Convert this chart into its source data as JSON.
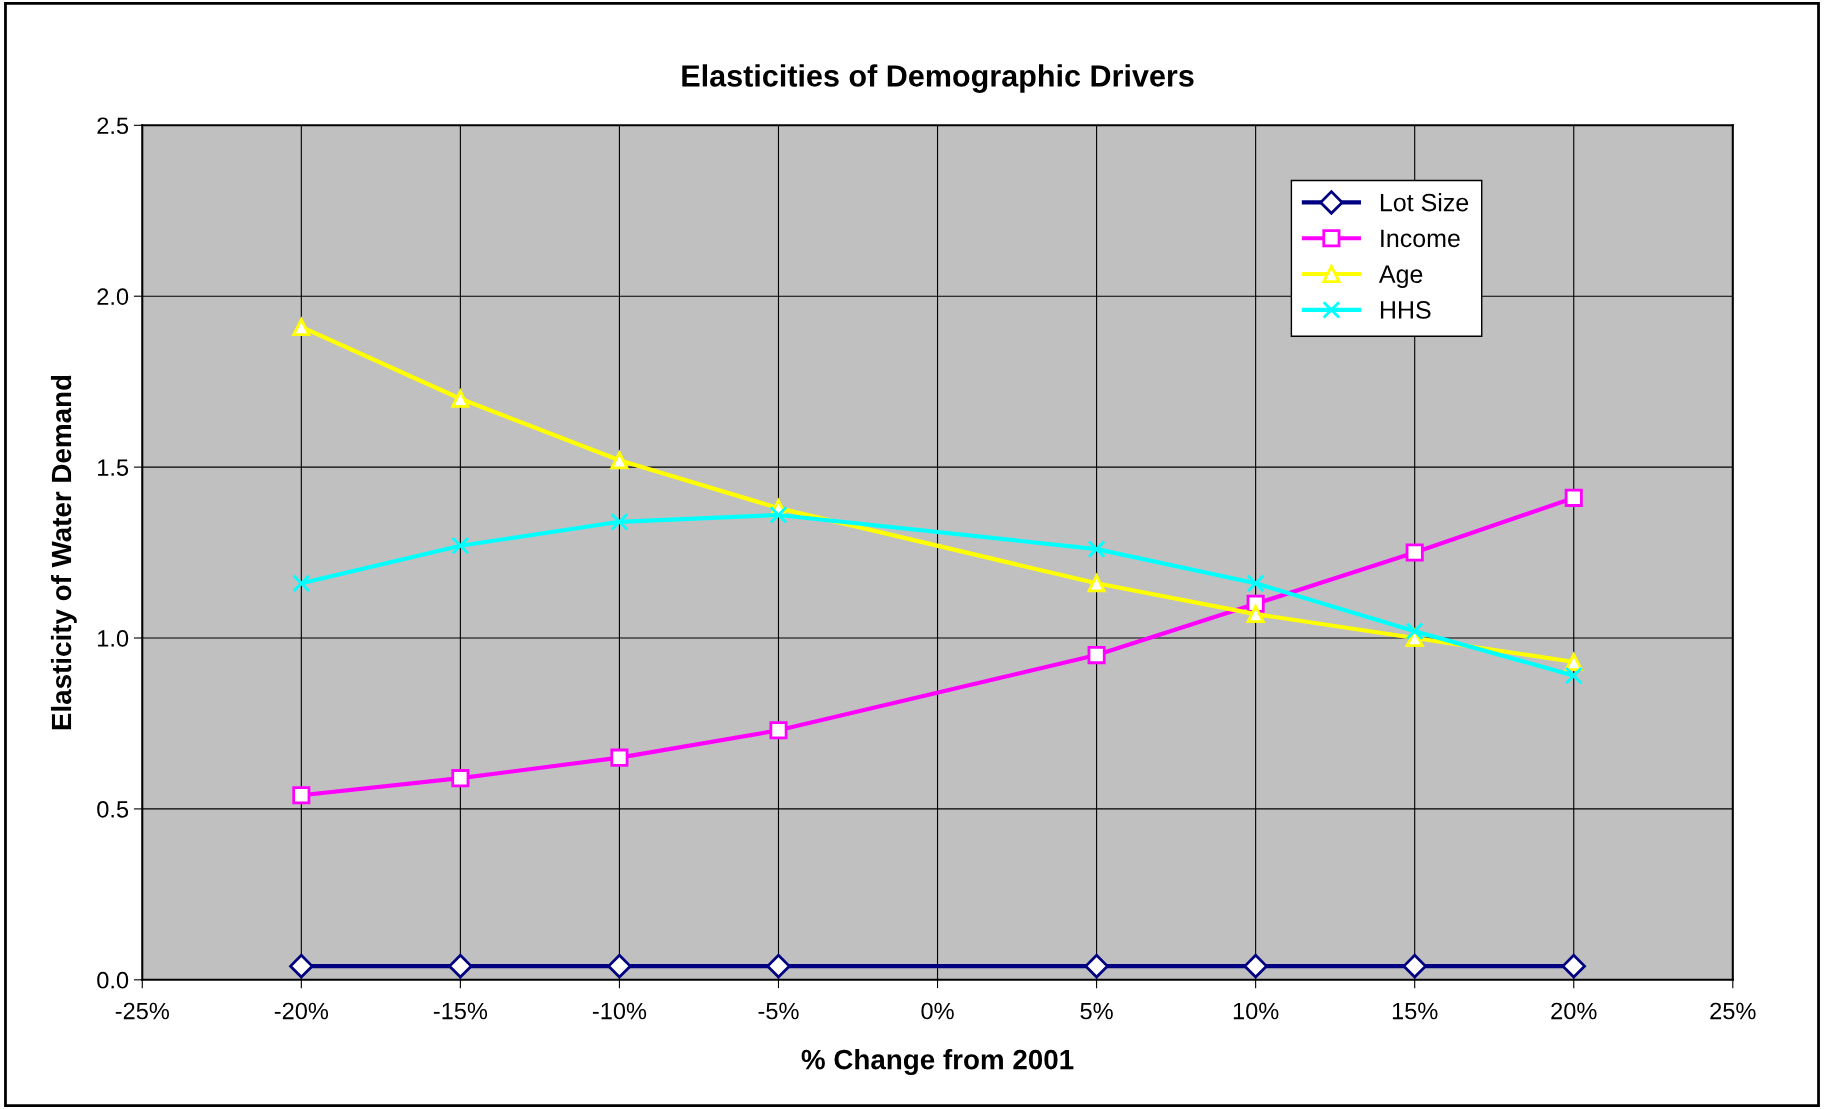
{
  "chart_data": {
    "type": "line",
    "title": "Elasticities of Demographic Drivers",
    "xlabel": "% Change from 2001",
    "ylabel": "Elasticity of Water Demand",
    "x": [
      -20,
      -15,
      -10,
      -5,
      5,
      10,
      15,
      20
    ],
    "series": [
      {
        "name": "Lot Size",
        "color": "#000080",
        "marker": "diamond",
        "values": [
          0.04,
          0.04,
          0.04,
          0.04,
          0.04,
          0.04,
          0.04,
          0.04
        ]
      },
      {
        "name": "Income",
        "color": "#ff00ff",
        "marker": "square",
        "values": [
          0.54,
          0.59,
          0.65,
          0.73,
          0.95,
          1.1,
          1.25,
          1.41
        ]
      },
      {
        "name": "Age",
        "color": "#ffff00",
        "marker": "triangle",
        "values": [
          1.91,
          1.7,
          1.52,
          1.38,
          1.16,
          1.07,
          1.0,
          0.93
        ]
      },
      {
        "name": "HHS",
        "color": "#00ffff",
        "marker": "cross",
        "values": [
          1.16,
          1.27,
          1.34,
          1.36,
          1.26,
          1.16,
          1.02,
          0.89
        ]
      }
    ],
    "xlim": [
      -25,
      25
    ],
    "xticks": [
      {
        "value": -25,
        "label": "-25%"
      },
      {
        "value": -20,
        "label": "-20%"
      },
      {
        "value": -15,
        "label": "-15%"
      },
      {
        "value": -10,
        "label": "-10%"
      },
      {
        "value": -5,
        "label": "-5%"
      },
      {
        "value": 0,
        "label": "0%"
      },
      {
        "value": 5,
        "label": "5%"
      },
      {
        "value": 10,
        "label": "10%"
      },
      {
        "value": 15,
        "label": "15%"
      },
      {
        "value": 20,
        "label": "20%"
      },
      {
        "value": 25,
        "label": "25%"
      }
    ],
    "ylim": [
      0,
      2.5
    ],
    "yticks": [
      {
        "value": 0,
        "label": "0.0"
      },
      {
        "value": 0.5,
        "label": "0.5"
      },
      {
        "value": 1,
        "label": "1.0"
      },
      {
        "value": 1.5,
        "label": "1.5"
      },
      {
        "value": 2,
        "label": "2.0"
      },
      {
        "value": 2.5,
        "label": "2.5"
      }
    ],
    "grid": true,
    "legend": "top right",
    "line_style": "solid"
  }
}
